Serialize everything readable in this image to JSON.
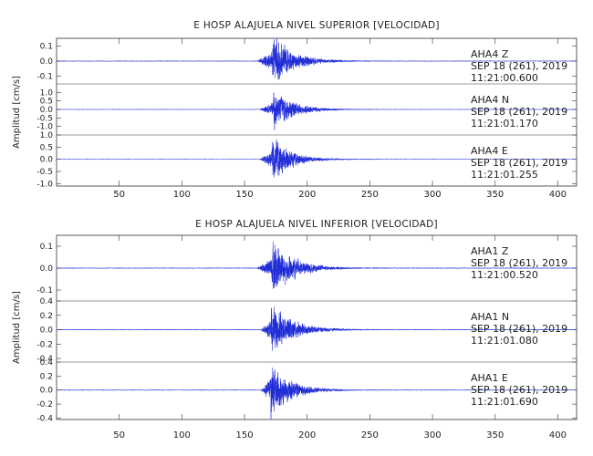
{
  "chart_data": [
    {
      "type": "line",
      "title": "E HOSP ALAJUELA NIVEL SUPERIOR [VELOCIDAD]",
      "ylabel": "Amplitud [cm/s]",
      "xlim": [
        0,
        415
      ],
      "x_ticks": [
        50,
        100,
        150,
        200,
        250,
        300,
        350,
        400
      ],
      "grid": false,
      "series": [
        {
          "name": "AHA4 Z",
          "station": "AHA4",
          "component": "Z",
          "date_line": "SEP 18 (261), 2019",
          "time_line": "11:21:00.600",
          "ylim": [
            -0.15,
            0.15
          ],
          "y_tick_labels": [
            "0.1",
            "0.0",
            "-0.1"
          ],
          "event": {
            "onset_s": 160,
            "peak_s": 172,
            "peak_amplitude": 0.15,
            "decay_s": 45
          }
        },
        {
          "name": "AHA4 N",
          "station": "AHA4",
          "component": "N",
          "date_line": "SEP 18 (261), 2019",
          "time_line": "11:21:01.170",
          "ylim": [
            -1.5,
            1.5
          ],
          "y_tick_labels": [
            "1.0",
            "0.5",
            "0.0",
            "-0.5",
            "-1.0"
          ],
          "event": {
            "onset_s": 162,
            "peak_s": 173,
            "peak_amplitude": 1.0,
            "decay_s": 45
          }
        },
        {
          "name": "AHA4 E",
          "station": "AHA4",
          "component": "E",
          "date_line": "SEP 18 (261), 2019",
          "time_line": "11:21:01.255",
          "ylim": [
            -1.1,
            1.0
          ],
          "y_tick_labels": [
            "1.0",
            "0.5",
            "0.0",
            "-0.5",
            "-1.0"
          ],
          "event": {
            "onset_s": 162,
            "peak_s": 172,
            "peak_amplitude": 0.85,
            "decay_s": 40
          }
        }
      ]
    },
    {
      "type": "line",
      "title": "E HOSP ALAJUELA NIVEL INFERIOR [VELOCIDAD]",
      "ylabel": "Amplitud [cm/s]",
      "xlim": [
        0,
        415
      ],
      "x_ticks": [
        50,
        100,
        150,
        200,
        250,
        300,
        350,
        400
      ],
      "grid": false,
      "series": [
        {
          "name": "AHA1 Z",
          "station": "AHA1",
          "component": "Z",
          "date_line": "SEP 18 (261), 2019",
          "time_line": "11:21:00.520",
          "ylim": [
            -0.15,
            0.15
          ],
          "y_tick_labels": [
            "0.1",
            "0.0",
            "-0.1"
          ],
          "event": {
            "onset_s": 160,
            "peak_s": 172,
            "peak_amplitude": 0.12,
            "decay_s": 45
          }
        },
        {
          "name": "AHA1 N",
          "station": "AHA1",
          "component": "N",
          "date_line": "SEP 18 (261), 2019",
          "time_line": "11:21:01.080",
          "ylim": [
            -0.45,
            0.4
          ],
          "y_tick_labels": [
            "0.4",
            "0.2",
            "0.0",
            "-0.2",
            "-0.4"
          ],
          "event": {
            "onset_s": 163,
            "peak_s": 171,
            "peak_amplitude": 0.35,
            "decay_s": 45
          }
        },
        {
          "name": "AHA1 E",
          "station": "AHA1",
          "component": "E",
          "date_line": "SEP 18 (261), 2019",
          "time_line": "11:21:01.690",
          "ylim": [
            -0.42,
            0.4
          ],
          "y_tick_labels": [
            "0.4",
            "0.2",
            "0.0",
            "-0.2",
            "-0.4"
          ],
          "event": {
            "onset_s": 163,
            "peak_s": 171,
            "peak_amplitude": 0.38,
            "decay_s": 40
          }
        }
      ]
    }
  ],
  "colors": {
    "trace": "#1f2bd6",
    "axis": "#333333",
    "text": "#222222"
  }
}
